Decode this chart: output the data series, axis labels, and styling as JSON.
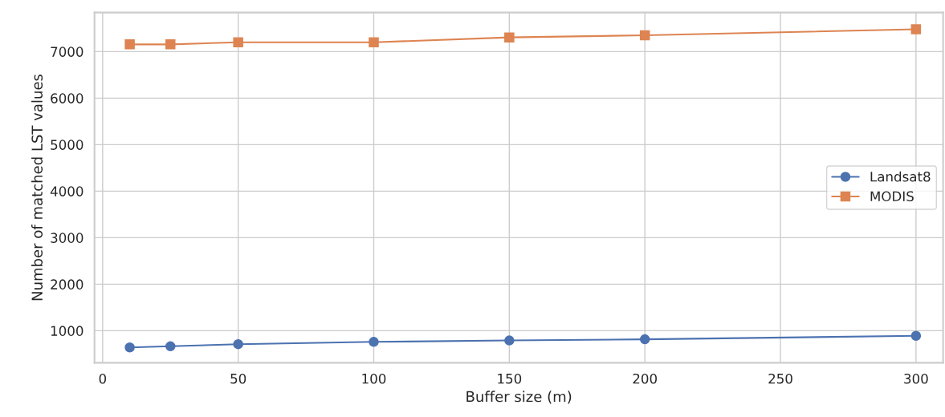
{
  "chart_data": {
    "type": "line",
    "xlabel": "Buffer size (m)",
    "ylabel": "Number of matched LST values",
    "x": [
      10,
      25,
      50,
      100,
      150,
      200,
      300
    ],
    "series": [
      {
        "name": "Landsat8",
        "color": "#4c72b0",
        "marker": "circle",
        "values": [
          640,
          665,
          710,
          760,
          790,
          815,
          890
        ]
      },
      {
        "name": "MODIS",
        "color": "#dd8452",
        "marker": "square",
        "values": [
          7155,
          7155,
          7200,
          7200,
          7305,
          7350,
          7480
        ]
      }
    ],
    "xlim": [
      -3,
      310
    ],
    "ylim": [
      310,
      7840
    ],
    "xticks": [
      0,
      50,
      100,
      150,
      200,
      250,
      300
    ],
    "yticks": [
      1000,
      2000,
      3000,
      4000,
      5000,
      6000,
      7000
    ],
    "grid": true,
    "legend": "center right",
    "line_style": "solid"
  }
}
